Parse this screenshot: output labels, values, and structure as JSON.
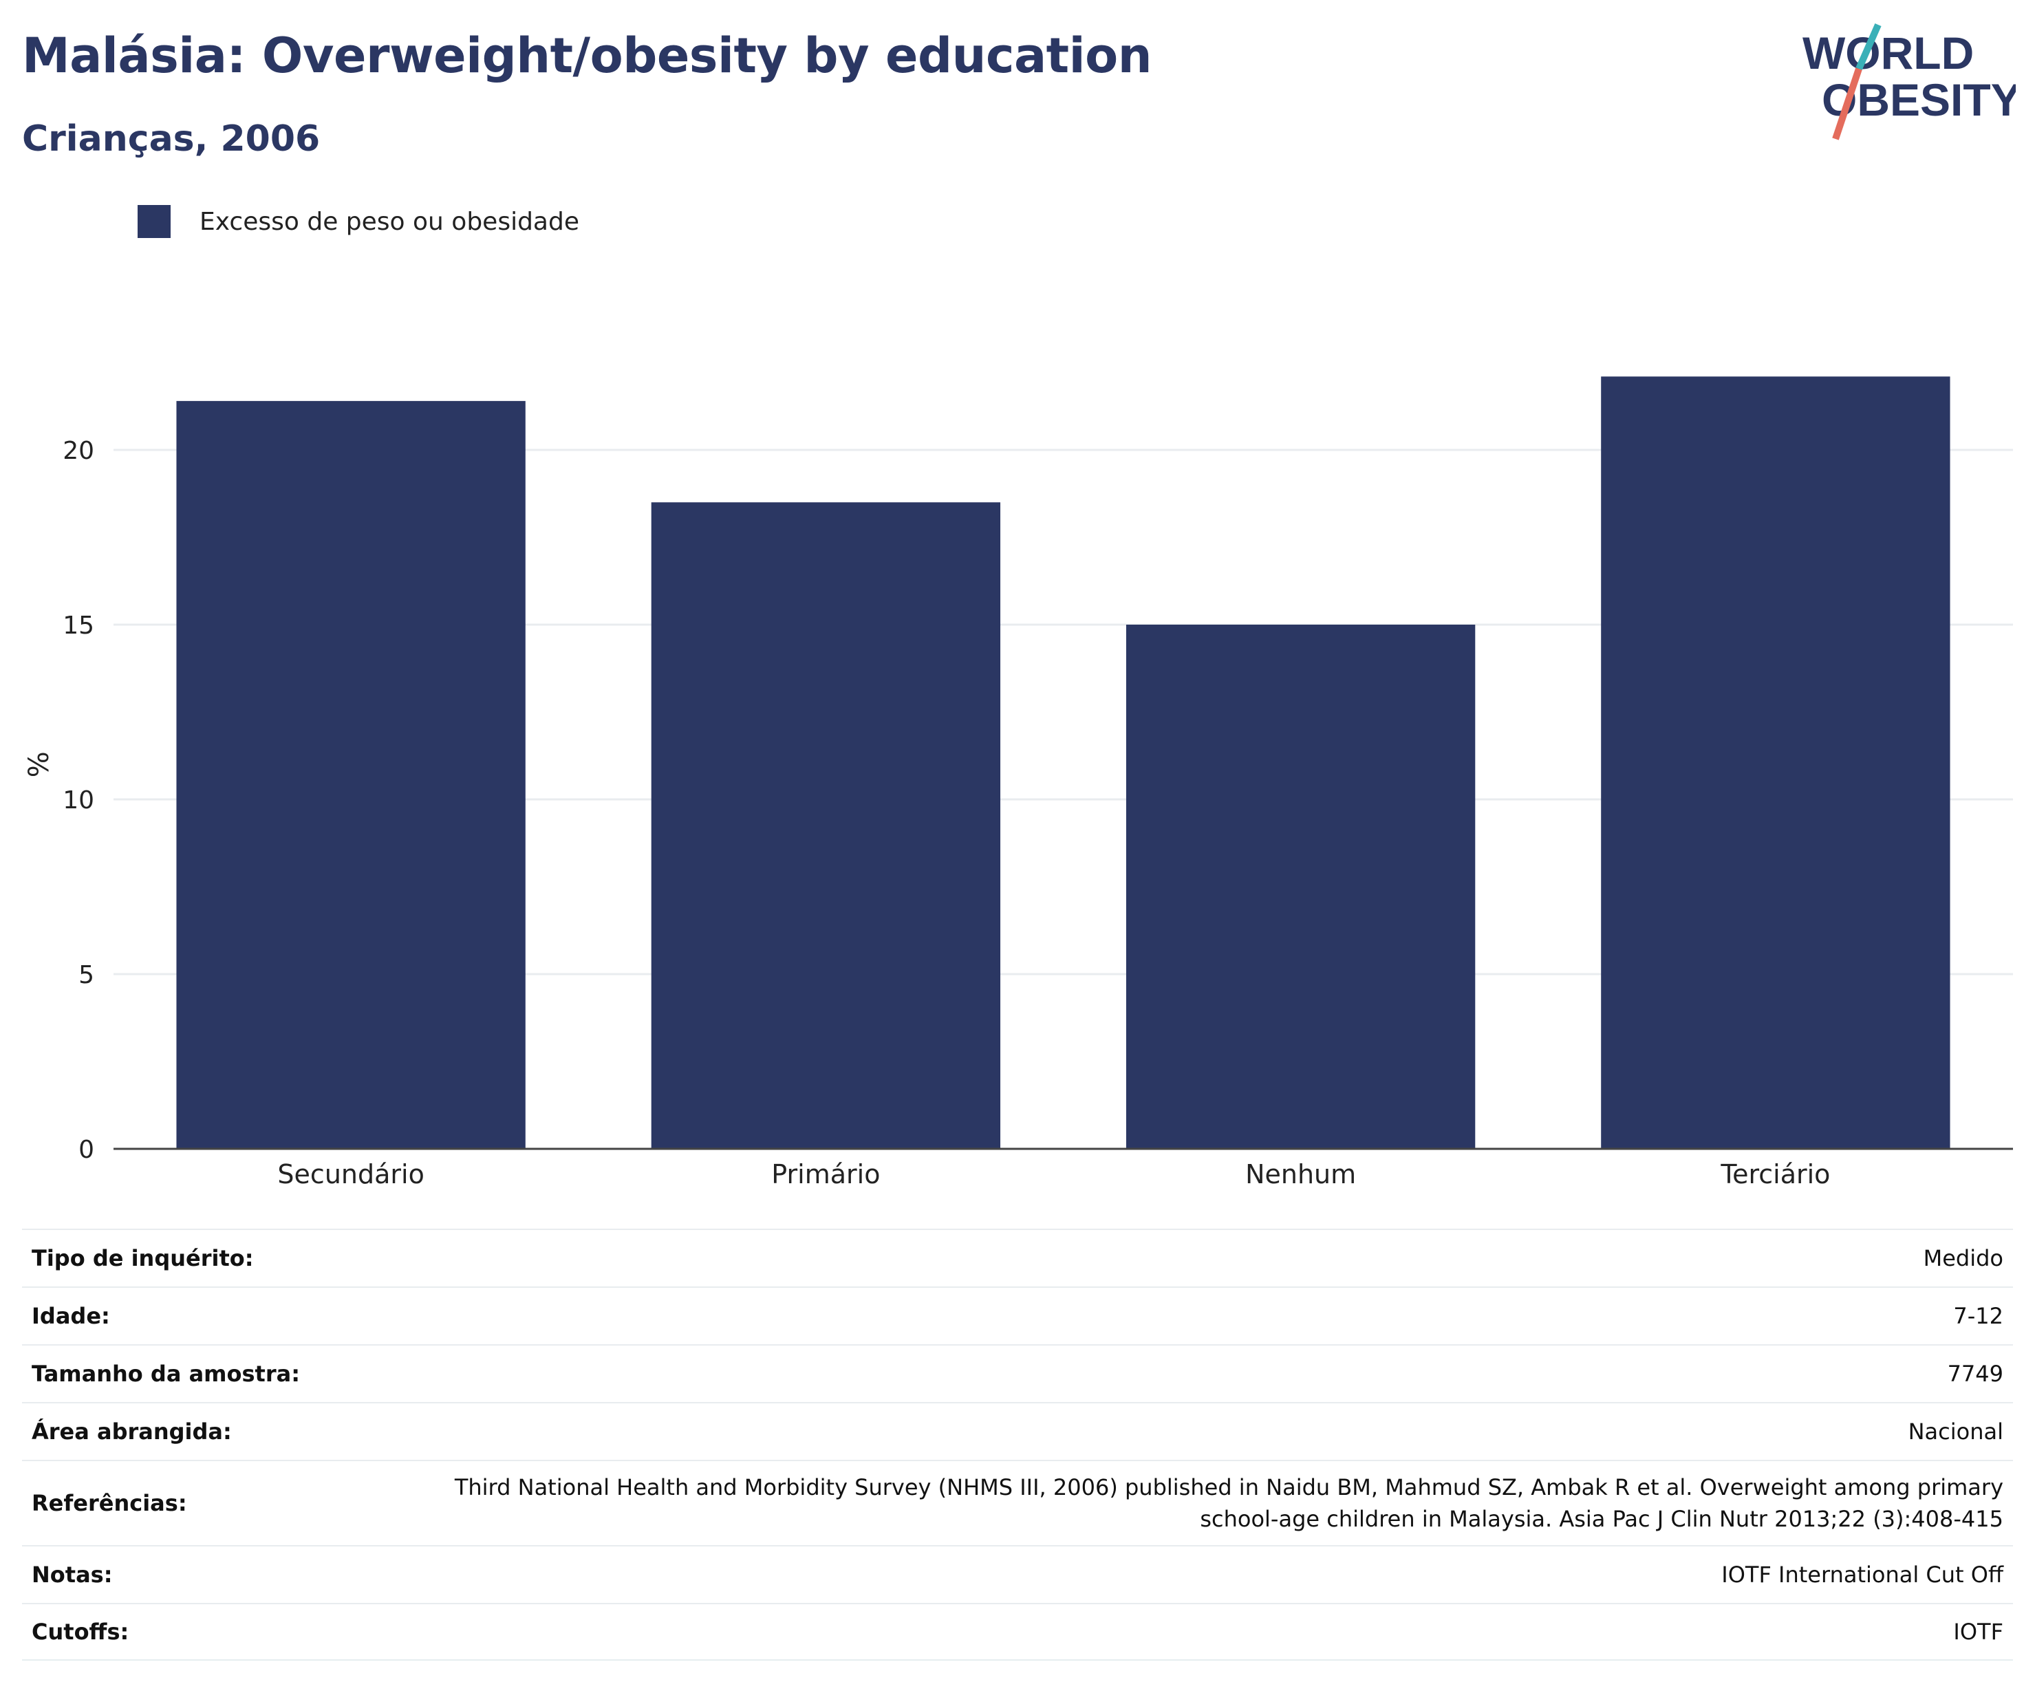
{
  "header": {
    "title": "Malásia: Overweight/obesity by education",
    "subtitle": "Crianças, 2006"
  },
  "logo": {
    "line1": "WORLD",
    "line2": "OBESITY"
  },
  "legend": {
    "label": "Excesso de peso ou obesidade"
  },
  "colors": {
    "bar": "#2b3763",
    "title": "#2b3763",
    "logo_teal": "#3ab0b8",
    "logo_coral": "#e46c5c"
  },
  "chart_data": {
    "type": "bar",
    "categories": [
      "Secundário",
      "Primário",
      "Nenhum",
      "Terciário"
    ],
    "series": [
      {
        "name": "Excesso de peso ou obesidade",
        "values": [
          21.4,
          18.5,
          15.0,
          22.1
        ]
      }
    ],
    "ylabel": "%",
    "ylim": [
      0,
      25
    ],
    "yticks": [
      0,
      5,
      10,
      15,
      20
    ],
    "grid": true,
    "legend_position": "top-left"
  },
  "meta": [
    {
      "key": "Tipo de inquérito:",
      "value": "Medido"
    },
    {
      "key": "Idade:",
      "value": "7-12"
    },
    {
      "key": "Tamanho da amostra:",
      "value": "7749"
    },
    {
      "key": "Área abrangida:",
      "value": "Nacional"
    },
    {
      "key": "Referências:",
      "value": "Third National Health and Morbidity Survey (NHMS III, 2006) published in Naidu BM, Mahmud SZ, Ambak R et al. Overweight among primary school-age children in Malaysia. Asia Pac J Clin Nutr 2013;22 (3):408-415"
    },
    {
      "key": "Notas:",
      "value": "IOTF International Cut Off"
    },
    {
      "key": "Cutoffs:",
      "value": "IOTF"
    }
  ]
}
